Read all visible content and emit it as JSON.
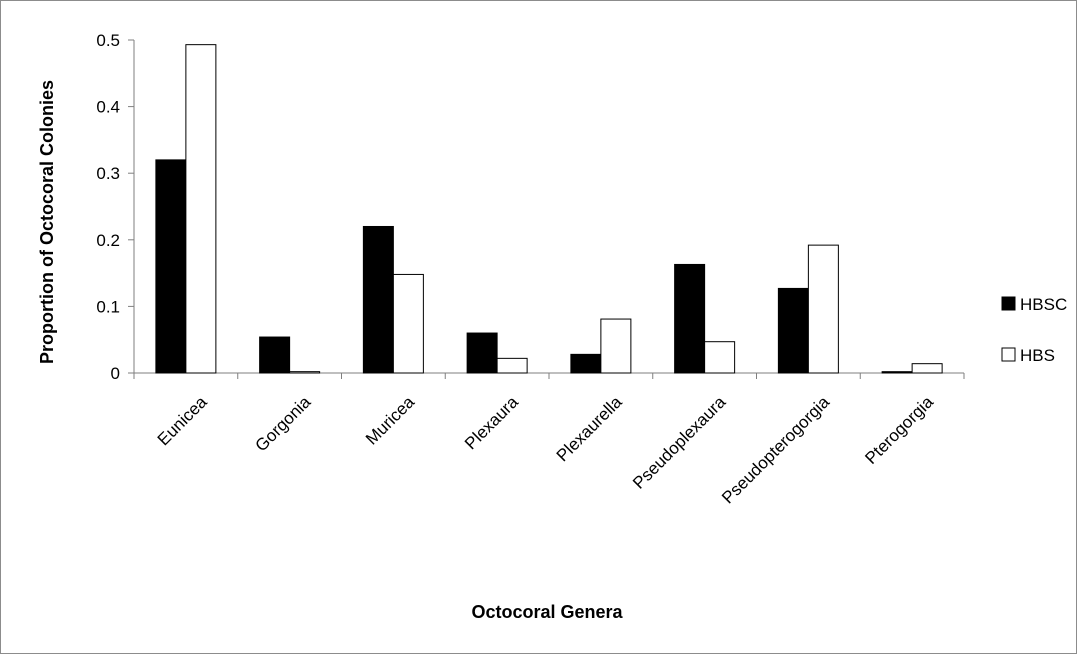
{
  "chart_data": {
    "type": "bar",
    "title": "",
    "xlabel": "Octocoral Genera",
    "ylabel": "Proportion of Octocoral Colonies",
    "categories": [
      "Eunicea",
      "Gorgonia",
      "Muricea",
      "Plexaura",
      "Plexaurella",
      "Pseudoplexaura",
      "Pseudopterogorgia",
      "Pterogorgia"
    ],
    "series": [
      {
        "name": "HBSC",
        "color": "#000000",
        "values": [
          0.32,
          0.054,
          0.22,
          0.06,
          0.028,
          0.163,
          0.127,
          0.002
        ]
      },
      {
        "name": "HBS",
        "color": "#ffffff",
        "values": [
          0.493,
          0.002,
          0.148,
          0.022,
          0.081,
          0.047,
          0.192,
          0.014
        ]
      }
    ],
    "ylim": [
      0,
      0.5
    ],
    "yticks": [
      "0",
      "0.1",
      "0.2",
      "0.3",
      "0.4",
      "0.5"
    ],
    "grid": false,
    "legend_position": "right"
  }
}
